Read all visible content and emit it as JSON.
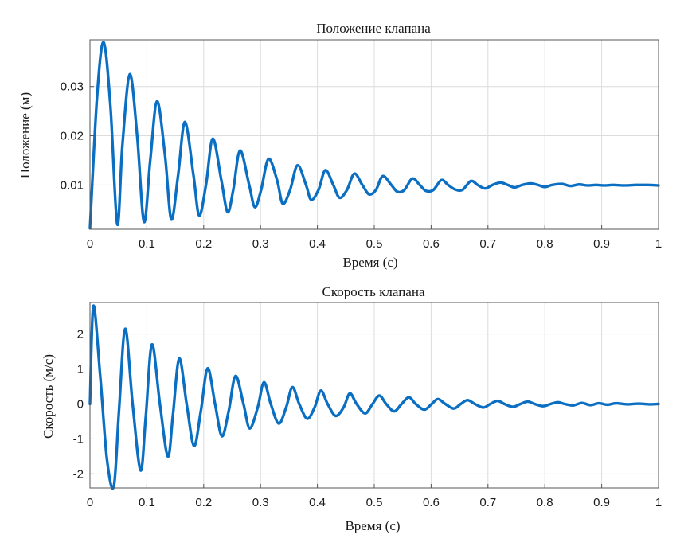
{
  "colors": {
    "series": "#0a6fc2"
  },
  "chart_data": [
    {
      "type": "line",
      "title": "Положение клапана",
      "xlabel": "Время (с)",
      "ylabel": "Положение (м)",
      "xlim": [
        0,
        1
      ],
      "ylim": [
        0.001,
        0.0395
      ],
      "grid": true,
      "x_ticks": [
        "0",
        "0.1",
        "0.2",
        "0.3",
        "0.4",
        "0.5",
        "0.6",
        "0.7",
        "0.8",
        "0.9",
        "1"
      ],
      "y_ticks": [
        "0.01",
        "0.02",
        "0.03"
      ],
      "x_tick_values": [
        0,
        0.1,
        0.2,
        0.3,
        0.4,
        0.5,
        0.6,
        0.7,
        0.8,
        0.9,
        1
      ],
      "y_tick_values": [
        0.01,
        0.02,
        0.03
      ],
      "series": [
        {
          "x": [
            0.0,
            0.0125,
            0.024,
            0.036,
            0.048,
            0.057,
            0.07,
            0.083,
            0.095,
            0.106,
            0.118,
            0.132,
            0.143,
            0.155,
            0.167,
            0.182,
            0.192,
            0.204,
            0.216,
            0.231,
            0.242,
            0.252,
            0.264,
            0.28,
            0.29,
            0.301,
            0.314,
            0.329,
            0.339,
            0.352,
            0.365,
            0.38,
            0.389,
            0.402,
            0.414,
            0.428,
            0.439,
            0.452,
            0.465,
            0.479,
            0.491,
            0.503,
            0.515,
            0.53,
            0.541,
            0.553,
            0.567,
            0.58,
            0.591,
            0.604,
            0.618,
            0.63,
            0.642,
            0.655,
            0.67,
            0.682,
            0.695,
            0.708,
            0.722,
            0.735,
            0.747,
            0.76,
            0.775,
            0.788,
            0.8,
            0.813,
            0.83,
            0.845,
            0.86,
            0.875,
            0.89,
            0.905,
            0.92,
            0.94,
            0.96,
            0.98,
            1.0
          ],
          "y": [
            0.0012,
            0.028,
            0.039,
            0.026,
            0.002,
            0.018,
            0.0325,
            0.02,
            0.0025,
            0.015,
            0.027,
            0.016,
            0.003,
            0.012,
            0.0228,
            0.012,
            0.0038,
            0.01,
            0.0194,
            0.011,
            0.0045,
            0.009,
            0.017,
            0.01,
            0.0055,
            0.009,
            0.0153,
            0.011,
            0.0062,
            0.009,
            0.014,
            0.01,
            0.007,
            0.009,
            0.013,
            0.01,
            0.0074,
            0.009,
            0.0123,
            0.01,
            0.0081,
            0.009,
            0.0118,
            0.01,
            0.0086,
            0.009,
            0.0113,
            0.01,
            0.0088,
            0.009,
            0.011,
            0.01,
            0.0091,
            0.009,
            0.0108,
            0.01,
            0.0093,
            0.01,
            0.0105,
            0.01,
            0.0095,
            0.01,
            0.0103,
            0.01,
            0.0096,
            0.01,
            0.0102,
            0.0098,
            0.0101,
            0.0099,
            0.01,
            0.0099,
            0.01,
            0.0099,
            0.01,
            0.01,
            0.0099
          ]
        }
      ]
    },
    {
      "type": "line",
      "title": "Скорость   клапана",
      "xlabel": "Время (с)",
      "ylabel": "Скорость (м/с)",
      "xlim": [
        0,
        1
      ],
      "ylim": [
        -2.4,
        2.9
      ],
      "grid": true,
      "x_ticks": [
        "0",
        "0.1",
        "0.2",
        "0.3",
        "0.4",
        "0.5",
        "0.6",
        "0.7",
        "0.8",
        "0.9",
        "1"
      ],
      "y_ticks": [
        "-2",
        "-1",
        "0",
        "1",
        "2"
      ],
      "x_tick_values": [
        0,
        0.1,
        0.2,
        0.3,
        0.4,
        0.5,
        0.6,
        0.7,
        0.8,
        0.9,
        1
      ],
      "y_tick_values": [
        -2,
        -1,
        0,
        1,
        2
      ],
      "series": [
        {
          "x": [
            0.0,
            0.006,
            0.018,
            0.03,
            0.042,
            0.051,
            0.062,
            0.075,
            0.089,
            0.098,
            0.109,
            0.123,
            0.137,
            0.146,
            0.157,
            0.17,
            0.183,
            0.195,
            0.207,
            0.22,
            0.232,
            0.244,
            0.256,
            0.27,
            0.281,
            0.295,
            0.306,
            0.318,
            0.332,
            0.345,
            0.356,
            0.368,
            0.382,
            0.395,
            0.406,
            0.418,
            0.432,
            0.446,
            0.457,
            0.469,
            0.484,
            0.497,
            0.509,
            0.521,
            0.535,
            0.548,
            0.561,
            0.573,
            0.588,
            0.601,
            0.612,
            0.625,
            0.64,
            0.652,
            0.664,
            0.677,
            0.692,
            0.704,
            0.717,
            0.729,
            0.744,
            0.757,
            0.77,
            0.782,
            0.797,
            0.81,
            0.823,
            0.835,
            0.85,
            0.865,
            0.88,
            0.895,
            0.91,
            0.925,
            0.945,
            0.965,
            0.985,
            1.0
          ],
          "y": [
            0.0,
            2.8,
            0.8,
            -1.6,
            -2.35,
            -0.2,
            2.15,
            0.0,
            -1.9,
            -0.4,
            1.7,
            0.0,
            -1.5,
            -0.3,
            1.3,
            0.0,
            -1.2,
            -0.2,
            1.02,
            0.0,
            -0.92,
            -0.2,
            0.8,
            0.0,
            -0.7,
            -0.1,
            0.62,
            0.0,
            -0.56,
            -0.1,
            0.48,
            0.0,
            -0.42,
            -0.1,
            0.38,
            0.0,
            -0.34,
            -0.1,
            0.3,
            0.0,
            -0.27,
            0.0,
            0.24,
            0.0,
            -0.21,
            0.0,
            0.19,
            0.0,
            -0.16,
            0.0,
            0.14,
            0.0,
            -0.13,
            0.0,
            0.11,
            0.0,
            -0.1,
            0.0,
            0.09,
            0.0,
            -0.08,
            0.0,
            0.07,
            0.0,
            -0.06,
            0.0,
            0.05,
            0.0,
            -0.04,
            0.03,
            -0.03,
            0.02,
            -0.02,
            0.02,
            -0.01,
            0.01,
            -0.01,
            0.0
          ]
        }
      ]
    }
  ]
}
